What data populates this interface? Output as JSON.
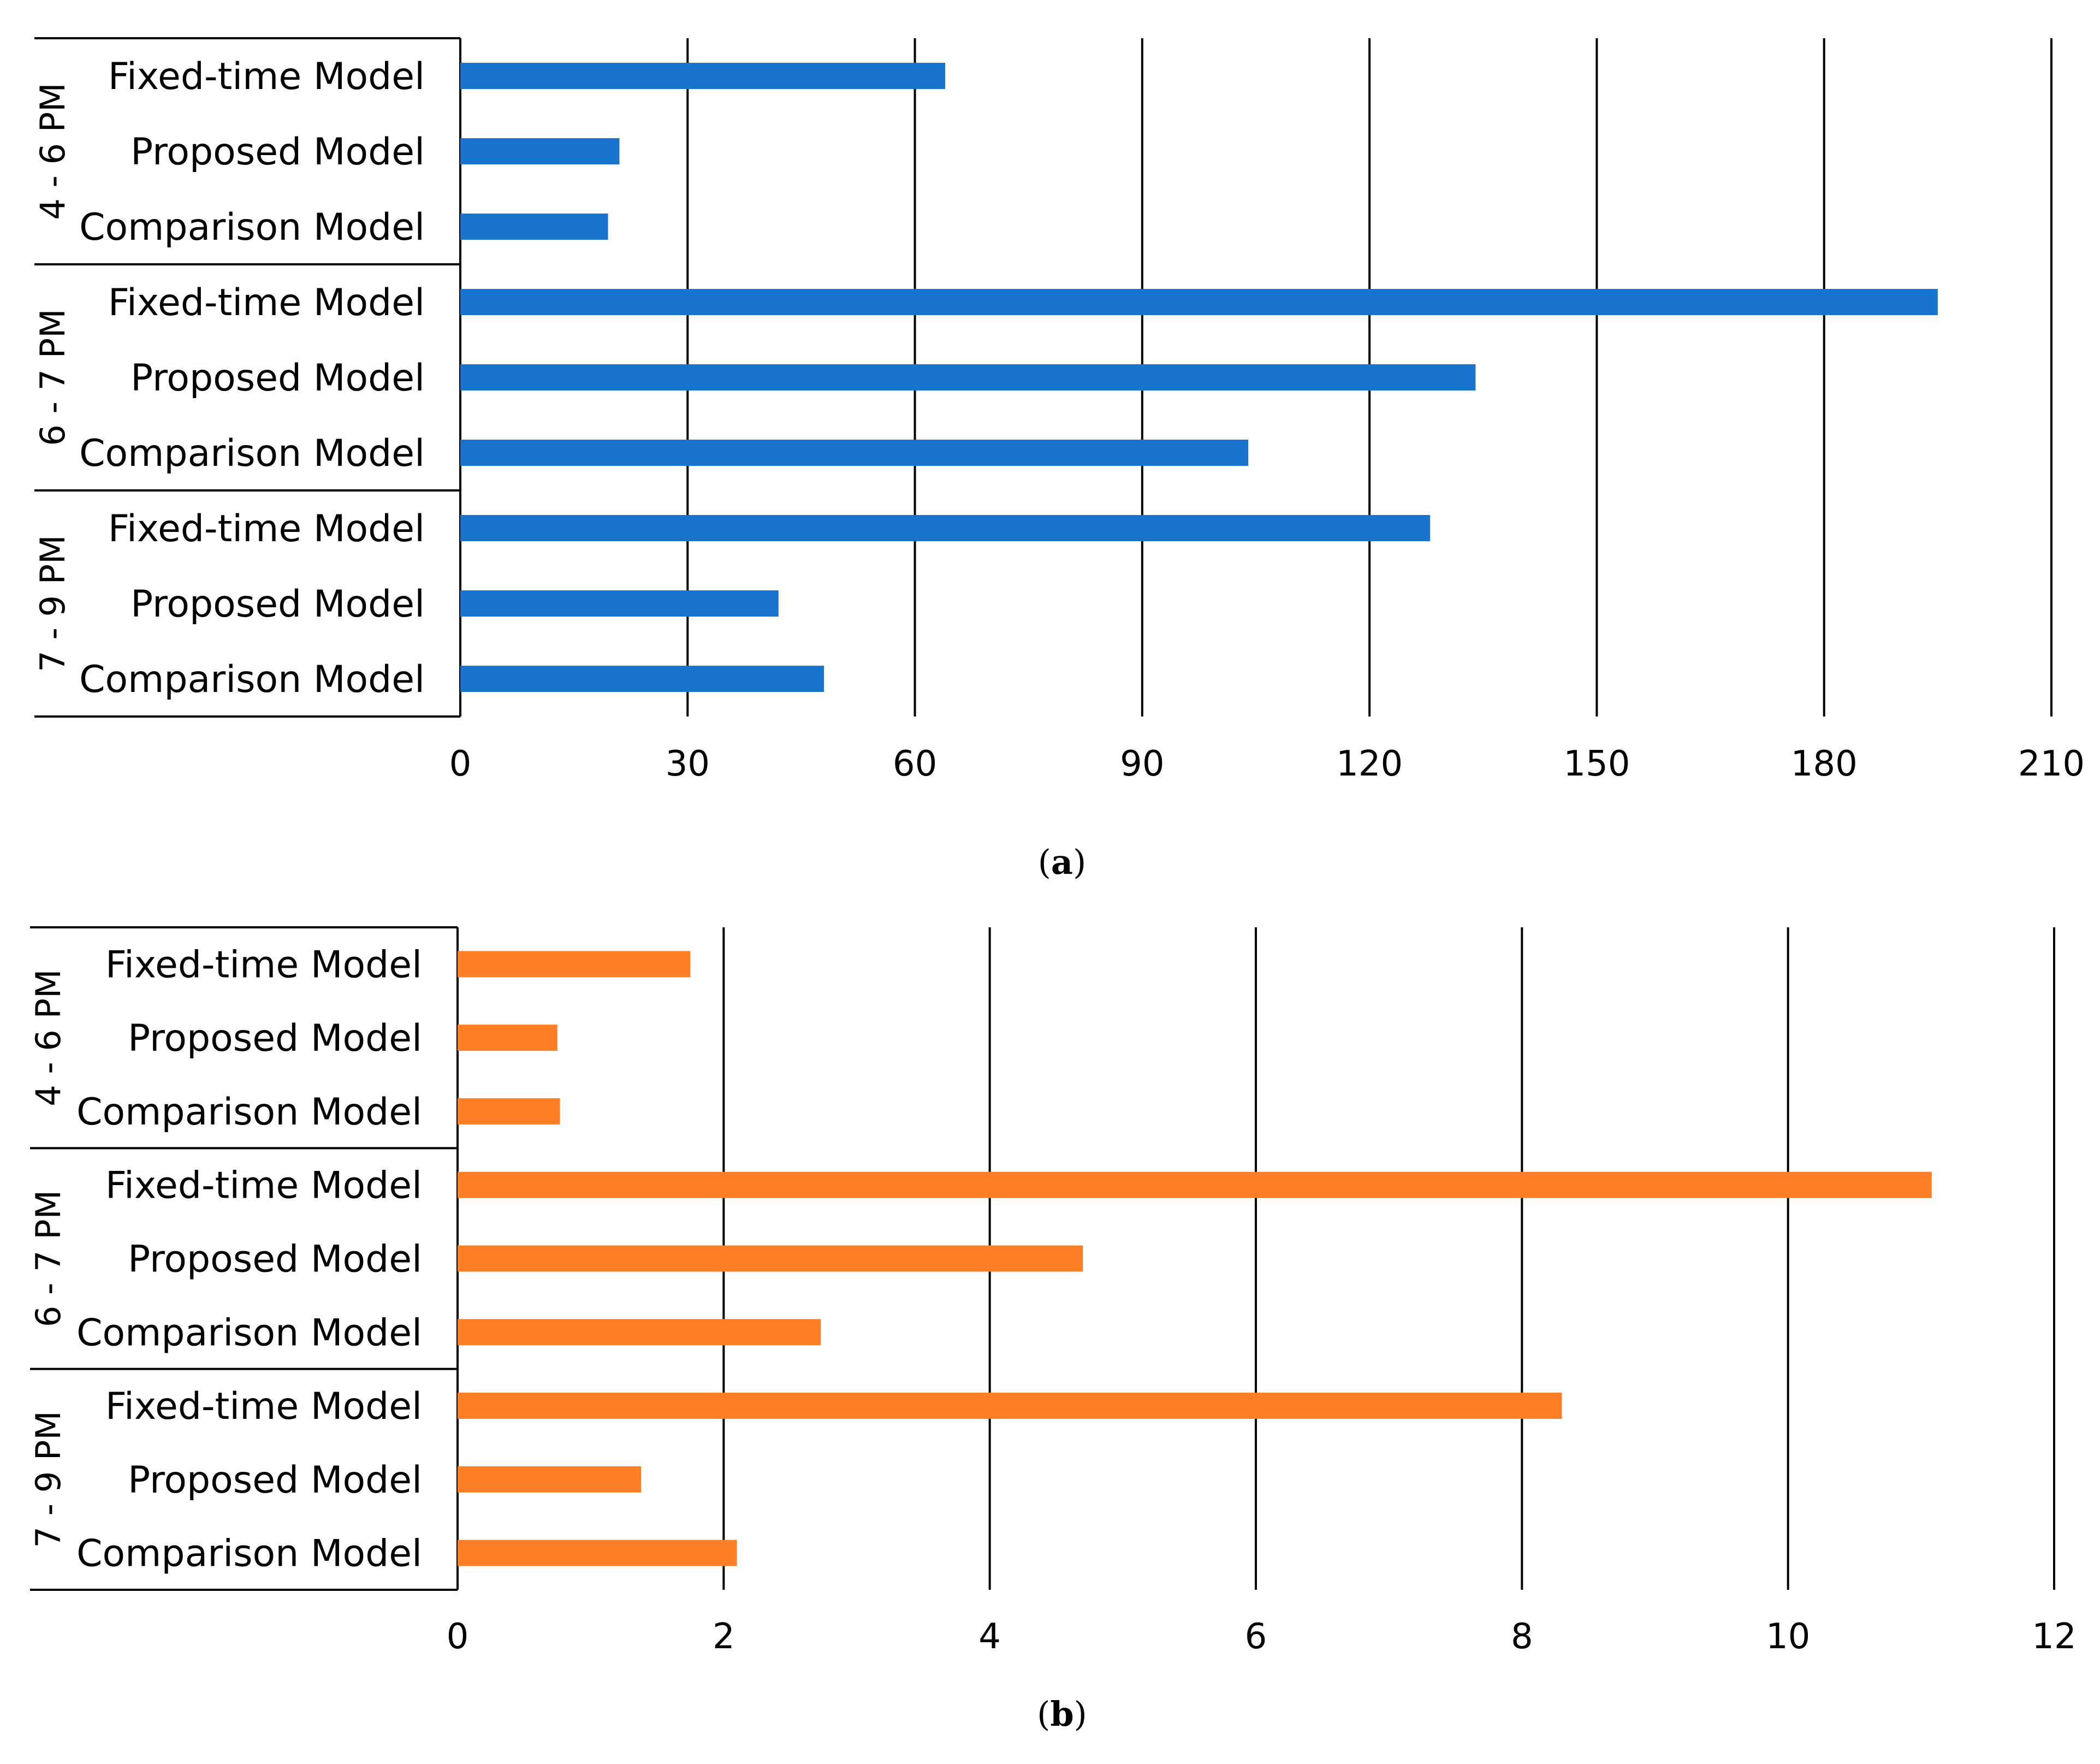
{
  "chart_data": [
    {
      "type": "bar",
      "orientation": "horizontal",
      "panel_label": "a",
      "bar_color": "#1874CD",
      "xlim": [
        0,
        210
      ],
      "x_ticks": [
        "0",
        "30",
        "60",
        "90",
        "120",
        "150",
        "180",
        "210"
      ],
      "grid": true,
      "groups": [
        {
          "name": "4 - 6 PM",
          "bars": [
            {
              "label": "Fixed-time Model",
              "value": 64
            },
            {
              "label": "Proposed Model",
              "value": 21
            },
            {
              "label": "Comparison Model",
              "value": 19.5
            }
          ]
        },
        {
          "name": "6 - 7 PM",
          "bars": [
            {
              "label": "Fixed-time Model",
              "value": 195
            },
            {
              "label": "Proposed Model",
              "value": 134
            },
            {
              "label": "Comparison Model",
              "value": 104
            }
          ]
        },
        {
          "name": "7 - 9 PM",
          "bars": [
            {
              "label": "Fixed-time Model",
              "value": 128
            },
            {
              "label": "Proposed Model",
              "value": 42
            },
            {
              "label": "Comparison Model",
              "value": 48
            }
          ]
        }
      ]
    },
    {
      "type": "bar",
      "orientation": "horizontal",
      "panel_label": "b",
      "bar_color": "#FF7F27",
      "xlim": [
        0,
        12
      ],
      "x_ticks": [
        "0",
        "2",
        "4",
        "6",
        "8",
        "10",
        "12"
      ],
      "grid": true,
      "groups": [
        {
          "name": "4 - 6 PM",
          "bars": [
            {
              "label": "Fixed-time Model",
              "value": 1.75
            },
            {
              "label": "Proposed Model",
              "value": 0.75
            },
            {
              "label": "Comparison Model",
              "value": 0.77
            }
          ]
        },
        {
          "name": "6 - 7 PM",
          "bars": [
            {
              "label": "Fixed-time Model",
              "value": 11.08
            },
            {
              "label": "Proposed Model",
              "value": 4.7
            },
            {
              "label": "Comparison Model",
              "value": 2.73
            }
          ]
        },
        {
          "name": "7 - 9 PM",
          "bars": [
            {
              "label": "Fixed-time Model",
              "value": 8.3
            },
            {
              "label": "Proposed Model",
              "value": 1.38
            },
            {
              "label": "Comparison Model",
              "value": 2.1
            }
          ]
        }
      ]
    }
  ]
}
